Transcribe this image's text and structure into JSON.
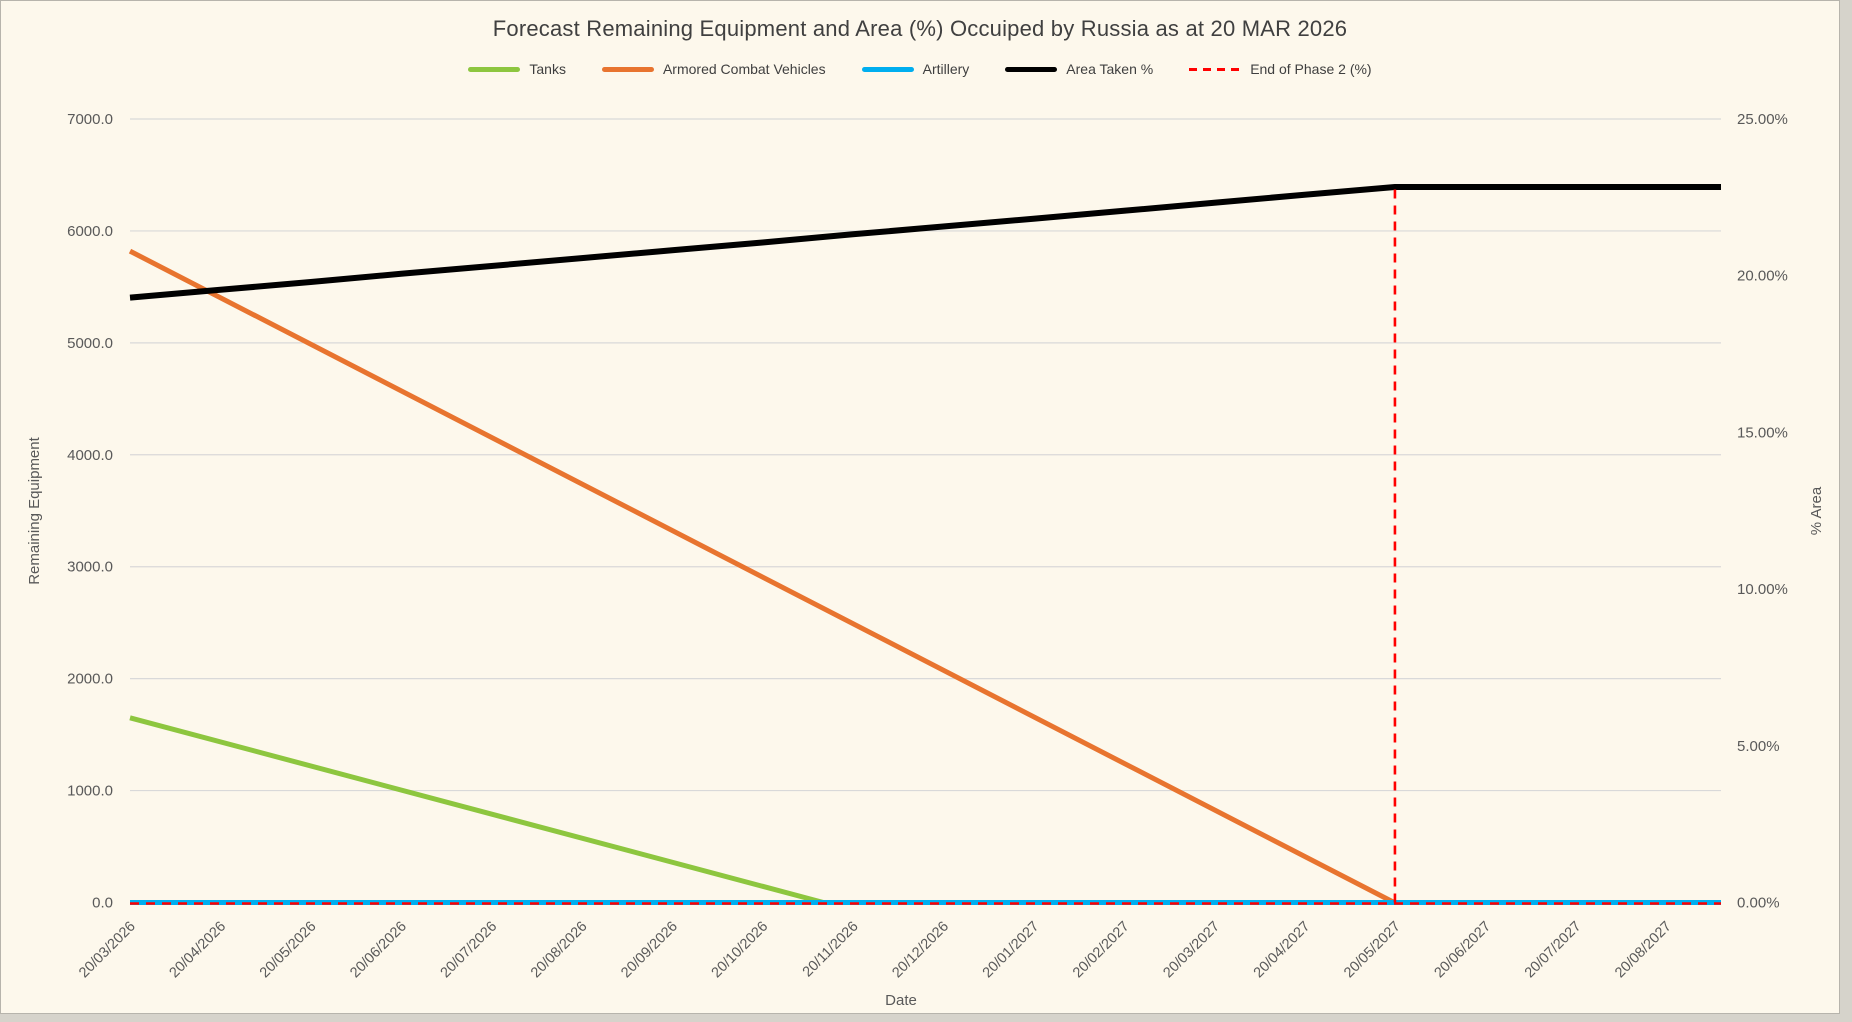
{
  "chart_data": {
    "type": "line",
    "title": "Forecast Remaining Equipment and Area (%) Occuiped by Russia as at 20 MAR 2026",
    "background_color": "#fdf8ec",
    "grid_color": "#d9d9d9",
    "grid": true,
    "legend_position": "top",
    "x_axis": {
      "label": "Date",
      "tick_labels": [
        "20/03/2026",
        "20/04/2026",
        "20/05/2026",
        "20/06/2026",
        "20/07/2026",
        "20/08/2026",
        "20/09/2026",
        "20/10/2026",
        "20/11/2026",
        "20/12/2026",
        "20/01/2027",
        "20/02/2027",
        "20/03/2027",
        "20/04/2027",
        "20/05/2027",
        "20/06/2027",
        "20/07/2027",
        "20/08/2027"
      ],
      "tick_rotation_deg": -45
    },
    "y_axis_left": {
      "label": "Remaining Equipment",
      "min": 0,
      "max": 7000,
      "step": 1000,
      "tick_labels": [
        "0.0",
        "1000.0",
        "2000.0",
        "3000.0",
        "4000.0",
        "5000.0",
        "6000.0",
        "7000.0"
      ]
    },
    "y_axis_right": {
      "label": "% Area",
      "min": 0,
      "max": 25,
      "step": 5,
      "tick_labels": [
        "0.00%",
        "5.00%",
        "10.00%",
        "15.00%",
        "20.00%",
        "25.00%"
      ]
    },
    "series": [
      {
        "name": "Tanks",
        "axis": "left",
        "color": "#8dc63f",
        "style": "solid",
        "values": [
          1650,
          1435,
          1220,
          1006,
          791,
          576,
          361,
          147,
          0,
          0,
          0,
          0,
          0,
          0,
          0,
          0,
          0,
          0
        ]
      },
      {
        "name": "Armored Combat Vehicles",
        "axis": "left",
        "color": "#e8742f",
        "style": "solid",
        "values": [
          5820,
          5404,
          4989,
          4573,
          4157,
          3741,
          3326,
          2910,
          2494,
          2079,
          1663,
          1247,
          831,
          416,
          0,
          0,
          0,
          0
        ]
      },
      {
        "name": "Artillery",
        "axis": "left",
        "color": "#00aeef",
        "style": "solid",
        "values": [
          0,
          0,
          0,
          0,
          0,
          0,
          0,
          0,
          0,
          0,
          0,
          0,
          0,
          0,
          0,
          0,
          0,
          0
        ]
      },
      {
        "name": "Area Taken %",
        "axis": "right",
        "color": "#000000",
        "style": "solid",
        "values": [
          19.3,
          19.55,
          19.8,
          20.06,
          20.31,
          20.56,
          20.81,
          21.06,
          21.32,
          21.57,
          21.82,
          22.07,
          22.33,
          22.58,
          22.83,
          22.83,
          22.83,
          22.83
        ]
      },
      {
        "name": "End of Phase 2 (%)",
        "axis": "right",
        "color": "#ff0000",
        "style": "dashed",
        "values": [
          0,
          0,
          0,
          0,
          0,
          0,
          0,
          0,
          0,
          0,
          0,
          0,
          0,
          0,
          22.83,
          0,
          0,
          0
        ],
        "marker_date": "20/05/2027",
        "marker_top_pct": 22.83
      }
    ]
  }
}
